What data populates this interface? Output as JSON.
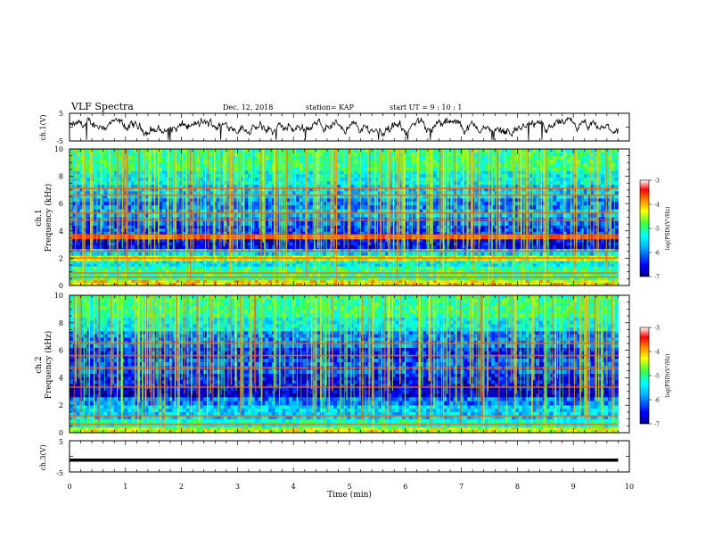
{
  "header": {
    "title": "VLF Spectra",
    "date": "Dec. 12, 2018",
    "station": "station= KAP",
    "start": "start  UT =   9 : 10 : 1"
  },
  "chart_data": [
    {
      "type": "line",
      "name_label": "ch.1(V)",
      "ylim": [
        -5,
        5
      ],
      "yticks": [
        "5",
        "-5"
      ],
      "xlim": [
        0,
        10
      ],
      "trace": "noisy waveform fluctuating roughly between -3 V and +3 V over 0-9.8 min"
    },
    {
      "type": "heatmap",
      "ylabel_top": "ch.1",
      "ylabel": "Frequency (kHz)",
      "ylim": [
        0,
        10
      ],
      "yticks": [
        "0",
        "2",
        "4",
        "6",
        "8",
        "10"
      ],
      "xlim": [
        0,
        10
      ],
      "data_extent_min": 9.8,
      "colorbar": {
        "min": -7,
        "max": -3,
        "ticks": [
          "-3",
          "-4",
          "-5",
          "-6",
          "-7"
        ],
        "label": "log(PSD)(V²/Hz)"
      },
      "bands": [
        {
          "f0": 0.0,
          "f1": 0.4,
          "level": -4.2
        },
        {
          "f0": 0.4,
          "f1": 1.4,
          "level": -5.0
        },
        {
          "f0": 1.4,
          "f1": 1.8,
          "level": -5.4
        },
        {
          "f0": 1.8,
          "f1": 2.2,
          "level": -4.4
        },
        {
          "f0": 2.2,
          "f1": 2.7,
          "level": -5.6
        },
        {
          "f0": 2.7,
          "f1": 3.4,
          "level": -6.6
        },
        {
          "f0": 3.4,
          "f1": 3.7,
          "level": -3.6
        },
        {
          "f0": 3.7,
          "f1": 4.4,
          "level": -6.3
        },
        {
          "f0": 4.4,
          "f1": 5.0,
          "level": -6.1
        },
        {
          "f0": 5.0,
          "f1": 5.6,
          "level": -5.8
        },
        {
          "f0": 5.6,
          "f1": 6.4,
          "level": -6.0
        },
        {
          "f0": 6.4,
          "f1": 7.4,
          "level": -5.7
        },
        {
          "f0": 7.4,
          "f1": 8.4,
          "level": -5.4
        },
        {
          "f0": 8.4,
          "f1": 10.0,
          "level": -5.0
        }
      ],
      "lines_khz": [
        0.6,
        0.9,
        2.0,
        2.5,
        3.5,
        3.7,
        4.8,
        5.3,
        6.6,
        7.1
      ]
    },
    {
      "type": "heatmap",
      "ylabel_top": "ch.2",
      "ylabel": "Frequency (kHz)",
      "ylim": [
        0,
        10
      ],
      "yticks": [
        "0",
        "2",
        "4",
        "6",
        "8",
        "10"
      ],
      "xlim": [
        0,
        10
      ],
      "data_extent_min": 9.8,
      "colorbar": {
        "min": -7,
        "max": -3,
        "ticks": [
          "-3",
          "-4",
          "-5",
          "-6",
          "-7"
        ],
        "label": "log(PSD)(V²/Hz)"
      },
      "bands": [
        {
          "f0": 0.0,
          "f1": 0.4,
          "level": -4.4
        },
        {
          "f0": 0.4,
          "f1": 1.0,
          "level": -5.2
        },
        {
          "f0": 1.0,
          "f1": 2.0,
          "level": -5.6
        },
        {
          "f0": 2.0,
          "f1": 2.6,
          "level": -6.0
        },
        {
          "f0": 2.6,
          "f1": 3.3,
          "level": -6.7
        },
        {
          "f0": 3.3,
          "f1": 4.3,
          "level": -6.5
        },
        {
          "f0": 4.3,
          "f1": 5.4,
          "level": -6.2
        },
        {
          "f0": 5.4,
          "f1": 6.2,
          "level": -6.4
        },
        {
          "f0": 6.2,
          "f1": 7.4,
          "level": -6.0
        },
        {
          "f0": 7.4,
          "f1": 8.4,
          "level": -5.4
        },
        {
          "f0": 8.4,
          "f1": 10.0,
          "level": -5.0
        }
      ],
      "lines_khz": [
        0.6,
        1.2,
        3.3,
        4.7,
        5.6,
        6.5
      ]
    },
    {
      "type": "line",
      "name_label": "ch.3(V)",
      "ylim": [
        -5,
        5
      ],
      "yticks": [
        "5",
        "0",
        "-5"
      ],
      "xlim": [
        0,
        10
      ],
      "trace": "flat line at about -1.2 V from 0 to 9.8 min"
    }
  ],
  "x_axis": {
    "label": "Time (min)",
    "ticks": [
      "0",
      "1",
      "2",
      "3",
      "4",
      "5",
      "6",
      "7",
      "8",
      "9",
      "10"
    ]
  }
}
